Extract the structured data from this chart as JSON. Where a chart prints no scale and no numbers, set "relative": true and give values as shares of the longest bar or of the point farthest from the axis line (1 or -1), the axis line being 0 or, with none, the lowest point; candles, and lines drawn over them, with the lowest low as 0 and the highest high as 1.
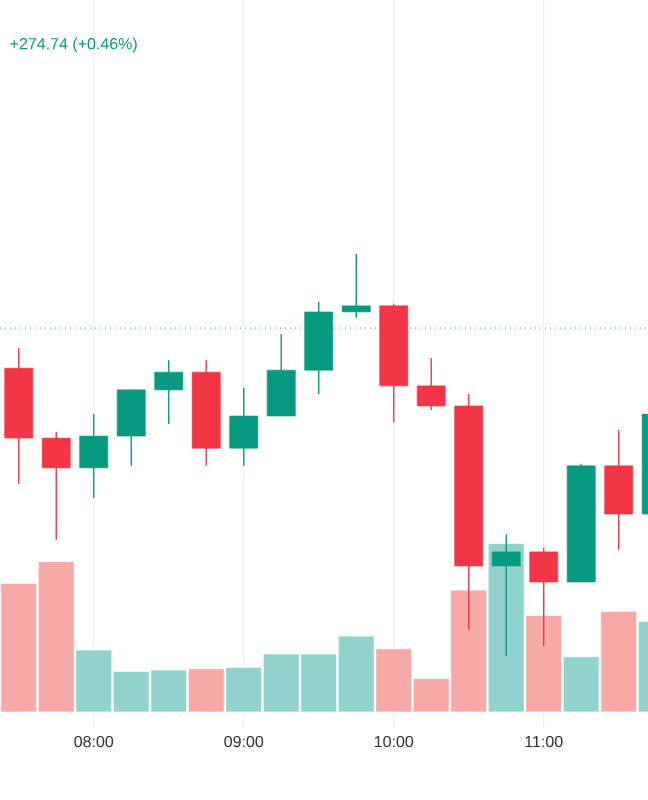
{
  "chart_data": [
    {
      "type": "candlestick",
      "title": "+274.74 (+0.46%)",
      "relative": true,
      "categories": [
        null,
        null,
        null,
        null,
        null,
        null,
        null,
        null,
        null,
        null,
        null,
        null,
        null,
        null,
        null,
        null,
        null,
        null
      ],
      "ohlc": [
        [
          0.716,
          0.766,
          0.428,
          0.542
        ],
        [
          0.542,
          0.557,
          0.289,
          0.468
        ],
        [
          0.468,
          0.602,
          0.393,
          0.547
        ],
        [
          0.547,
          0.662,
          0.473,
          0.662
        ],
        [
          0.662,
          0.736,
          0.577,
          0.706
        ],
        [
          0.706,
          0.736,
          0.473,
          0.517
        ],
        [
          0.517,
          0.667,
          0.473,
          0.597
        ],
        [
          0.597,
          0.801,
          0.597,
          0.711
        ],
        [
          0.711,
          0.881,
          0.652,
          0.856
        ],
        [
          0.856,
          1,
          0.841,
          0.871
        ],
        [
          0.871,
          0.876,
          0.582,
          0.672
        ],
        [
          0.672,
          0.741,
          0.612,
          0.622
        ],
        [
          0.622,
          0.652,
          0.065,
          0.224
        ],
        [
          0.224,
          0.303,
          0,
          0.259
        ],
        [
          0.259,
          0.269,
          0.025,
          0.184
        ],
        [
          0.184,
          0.478,
          0.184,
          0.473
        ],
        [
          0.473,
          0.562,
          0.264,
          0.353
        ],
        [
          0.353,
          0.602,
          0.353,
          0.602
        ]
      ],
      "colors": [
        "#f23645",
        "#f23645",
        "#089981",
        "#089981",
        "#089981",
        "#f23645",
        "#089981",
        "#089981",
        "#089981",
        "#089981",
        "#f23645",
        "#f23645",
        "#f23645",
        "#089981",
        "#f23645",
        "#089981",
        "#f23645",
        "#089981"
      ],
      "ref_lines": [
        {
          "axis": "y",
          "value": 0.816,
          "color": "#089981",
          "line_style": "dotted"
        }
      ]
    },
    {
      "type": "bar",
      "relative": true,
      "grid": "x",
      "categories": [
        null,
        null,
        "08:00",
        null,
        null,
        null,
        "09:00",
        null,
        null,
        null,
        "10:00",
        null,
        null,
        null,
        "11:00",
        null,
        null,
        null
      ],
      "values": [
        0.763,
        0.893,
        0.368,
        0.241,
        0.249,
        0.257,
        0.265,
        0.344,
        0.344,
        0.451,
        0.375,
        0.198,
        0.723,
        1,
        0.573,
        0.328,
        0.597,
        0.538
      ],
      "colors": [
        "#f7a9a7",
        "#f7a9a7",
        "#92d2cc",
        "#92d2cc",
        "#92d2cc",
        "#f7a9a7",
        "#92d2cc",
        "#92d2cc",
        "#92d2cc",
        "#92d2cc",
        "#f7a9a7",
        "#f7a9a7",
        "#f7a9a7",
        "#92d2cc",
        "#f7a9a7",
        "#92d2cc",
        "#f7a9a7",
        "#92d2cc"
      ]
    }
  ]
}
